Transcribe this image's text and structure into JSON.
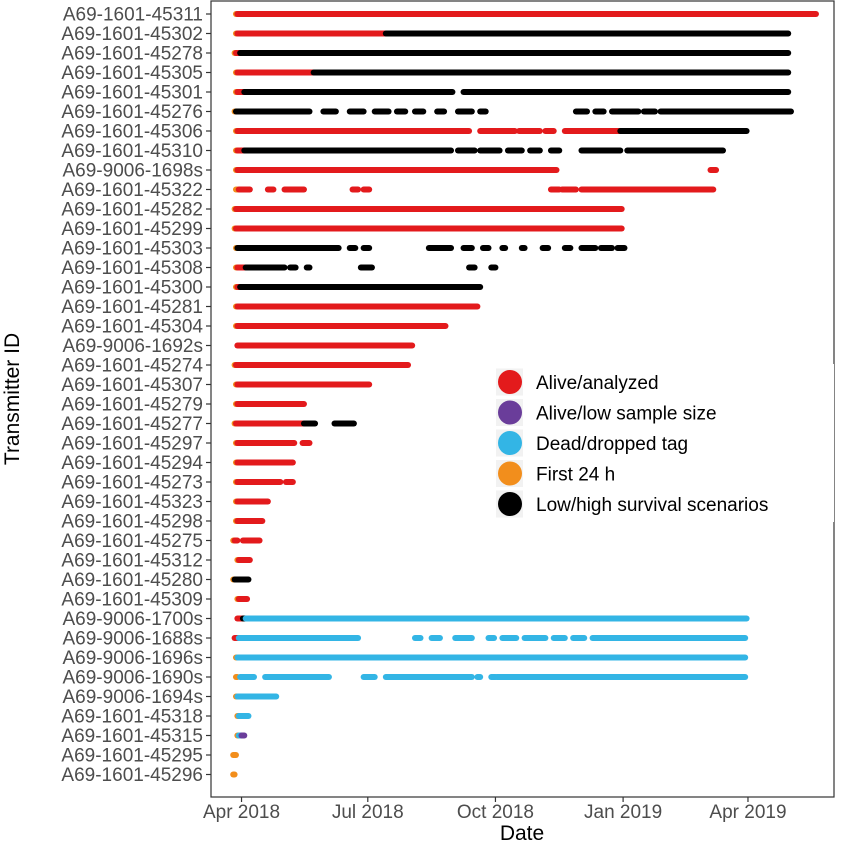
{
  "chart_data": {
    "type": "scatter",
    "xlabel": "Date",
    "ylabel": "Transmitter ID",
    "x_ticks": [
      {
        "date": "2018-04-01",
        "label": "Apr 2018"
      },
      {
        "date": "2018-07-01",
        "label": "Jul 2018"
      },
      {
        "date": "2018-10-01",
        "label": "Oct 2018"
      },
      {
        "date": "2019-01-01",
        "label": "Jan 2019"
      },
      {
        "date": "2019-04-01",
        "label": "Apr 2019"
      }
    ],
    "xlim": [
      "2018-03-10",
      "2019-06-02"
    ],
    "grid": false,
    "legend_position": "center-right",
    "legend": [
      {
        "key": "alive",
        "label": "Alive/analyzed",
        "color": "#e31a1c"
      },
      {
        "key": "low",
        "label": "Alive/low sample size",
        "color": "#6a3d9a"
      },
      {
        "key": "dead",
        "label": "Dead/dropped tag",
        "color": "#33b5e5"
      },
      {
        "key": "first",
        "label": "First 24 h",
        "color": "#f28e1c"
      },
      {
        "key": "scen",
        "label": "Low/high survival scenarios",
        "color": "#000000"
      }
    ],
    "transmitters": [
      {
        "id": "A69-1601-45311",
        "segments": [
          [
            "first",
            "2018-03-28",
            "2018-03-29"
          ],
          [
            "alive",
            "2018-03-29",
            "2019-05-20"
          ]
        ]
      },
      {
        "id": "A69-1601-45302",
        "segments": [
          [
            "first",
            "2018-03-28",
            "2018-03-29"
          ],
          [
            "alive",
            "2018-03-29",
            "2018-07-14"
          ],
          [
            "scen",
            "2018-07-14",
            "2019-04-30"
          ]
        ]
      },
      {
        "id": "A69-1601-45278",
        "segments": [
          [
            "first",
            "2018-03-27",
            "2018-03-28"
          ],
          [
            "alive",
            "2018-03-28",
            "2018-03-31"
          ],
          [
            "scen",
            "2018-03-31",
            "2019-04-30"
          ]
        ]
      },
      {
        "id": "A69-1601-45305",
        "segments": [
          [
            "first",
            "2018-03-28",
            "2018-03-29"
          ],
          [
            "alive",
            "2018-03-29",
            "2018-05-23"
          ],
          [
            "scen",
            "2018-05-23",
            "2019-04-30"
          ]
        ]
      },
      {
        "id": "A69-1601-45301",
        "segments": [
          [
            "first",
            "2018-03-28",
            "2018-03-29"
          ],
          [
            "alive",
            "2018-03-29",
            "2018-04-03"
          ],
          [
            "scen",
            "2018-04-03",
            "2018-08-31"
          ],
          [
            "scen",
            "2018-09-08",
            "2019-04-30"
          ]
        ]
      },
      {
        "id": "A69-1601-45276",
        "segments": [
          [
            "first",
            "2018-03-27",
            "2018-03-28"
          ],
          [
            "scen",
            "2018-03-28",
            "2018-05-20"
          ],
          [
            "scen",
            "2018-05-30",
            "2018-06-08"
          ],
          [
            "scen",
            "2018-06-18",
            "2018-06-28"
          ],
          [
            "scen",
            "2018-07-06",
            "2018-07-16"
          ],
          [
            "scen",
            "2018-07-22",
            "2018-07-28"
          ],
          [
            "scen",
            "2018-08-04",
            "2018-08-10"
          ],
          [
            "scen",
            "2018-08-20",
            "2018-08-25"
          ],
          [
            "scen",
            "2018-09-04",
            "2018-09-14"
          ],
          [
            "scen",
            "2018-09-20",
            "2018-09-24"
          ],
          [
            "scen",
            "2018-11-28",
            "2018-12-06"
          ],
          [
            "scen",
            "2018-12-12",
            "2018-12-18"
          ],
          [
            "scen",
            "2018-12-24",
            "2019-01-12"
          ],
          [
            "scen",
            "2019-01-16",
            "2019-01-24"
          ],
          [
            "scen",
            "2019-01-28",
            "2019-05-02"
          ]
        ]
      },
      {
        "id": "A69-1601-45306",
        "segments": [
          [
            "first",
            "2018-03-28",
            "2018-03-29"
          ],
          [
            "alive",
            "2018-03-29",
            "2018-09-12"
          ],
          [
            "alive",
            "2018-09-20",
            "2018-10-15"
          ],
          [
            "alive",
            "2018-10-18",
            "2018-11-02"
          ],
          [
            "alive",
            "2018-11-06",
            "2018-11-12"
          ],
          [
            "alive",
            "2018-11-20",
            "2018-12-30"
          ],
          [
            "scen",
            "2018-12-30",
            "2019-03-31"
          ]
        ]
      },
      {
        "id": "A69-1601-45310",
        "segments": [
          [
            "first",
            "2018-03-28",
            "2018-03-29"
          ],
          [
            "alive",
            "2018-03-29",
            "2018-04-03"
          ],
          [
            "scen",
            "2018-04-03",
            "2018-08-30"
          ],
          [
            "scen",
            "2018-09-04",
            "2018-09-16"
          ],
          [
            "scen",
            "2018-09-20",
            "2018-10-04"
          ],
          [
            "scen",
            "2018-10-10",
            "2018-10-20"
          ],
          [
            "scen",
            "2018-10-26",
            "2018-11-02"
          ],
          [
            "scen",
            "2018-11-10",
            "2018-11-16"
          ],
          [
            "scen",
            "2018-12-02",
            "2018-12-30"
          ],
          [
            "scen",
            "2019-01-04",
            "2019-03-14"
          ]
        ]
      },
      {
        "id": "A69-9006-1698s",
        "segments": [
          [
            "first",
            "2018-03-28",
            "2018-03-29"
          ],
          [
            "alive",
            "2018-03-29",
            "2018-11-14"
          ],
          [
            "alive",
            "2019-03-05",
            "2019-03-09"
          ]
        ]
      },
      {
        "id": "A69-1601-45322",
        "segments": [
          [
            "first",
            "2018-03-28",
            "2018-03-29"
          ],
          [
            "alive",
            "2018-03-30",
            "2018-04-07"
          ],
          [
            "alive",
            "2018-04-20",
            "2018-04-24"
          ],
          [
            "alive",
            "2018-05-02",
            "2018-05-16"
          ],
          [
            "alive",
            "2018-06-20",
            "2018-06-24"
          ],
          [
            "alive",
            "2018-06-28",
            "2018-07-02"
          ],
          [
            "alive",
            "2018-11-10",
            "2018-11-16"
          ],
          [
            "alive",
            "2018-11-18",
            "2018-11-28"
          ],
          [
            "alive",
            "2018-12-02",
            "2019-03-07"
          ]
        ]
      },
      {
        "id": "A69-1601-45282",
        "segments": [
          [
            "first",
            "2018-03-27",
            "2018-03-28"
          ],
          [
            "alive",
            "2018-03-28",
            "2018-12-31"
          ]
        ]
      },
      {
        "id": "A69-1601-45299",
        "segments": [
          [
            "first",
            "2018-03-27",
            "2018-03-28"
          ],
          [
            "alive",
            "2018-03-28",
            "2018-12-31"
          ]
        ]
      },
      {
        "id": "A69-1601-45303",
        "segments": [
          [
            "first",
            "2018-03-28",
            "2018-03-29"
          ],
          [
            "scen",
            "2018-03-29",
            "2018-06-10"
          ],
          [
            "scen",
            "2018-06-18",
            "2018-06-22"
          ],
          [
            "scen",
            "2018-06-28",
            "2018-07-02"
          ],
          [
            "scen",
            "2018-08-14",
            "2018-08-30"
          ],
          [
            "scen",
            "2018-09-08",
            "2018-09-14"
          ],
          [
            "scen",
            "2018-09-22",
            "2018-09-26"
          ],
          [
            "scen",
            "2018-10-06",
            "2018-10-08"
          ],
          [
            "scen",
            "2018-10-20",
            "2018-10-22"
          ],
          [
            "scen",
            "2018-11-04",
            "2018-11-08"
          ],
          [
            "scen",
            "2018-11-20",
            "2018-11-24"
          ],
          [
            "scen",
            "2018-12-02",
            "2018-12-12"
          ],
          [
            "scen",
            "2018-12-16",
            "2018-12-24"
          ],
          [
            "scen",
            "2018-12-28",
            "2019-01-02"
          ]
        ]
      },
      {
        "id": "A69-1601-45308",
        "segments": [
          [
            "first",
            "2018-03-28",
            "2018-03-29"
          ],
          [
            "alive",
            "2018-03-29",
            "2018-04-04"
          ],
          [
            "scen",
            "2018-04-04",
            "2018-05-02"
          ],
          [
            "scen",
            "2018-05-06",
            "2018-05-10"
          ],
          [
            "scen",
            "2018-05-18",
            "2018-05-20"
          ],
          [
            "scen",
            "2018-06-26",
            "2018-07-04"
          ],
          [
            "scen",
            "2018-09-12",
            "2018-09-16"
          ],
          [
            "scen",
            "2018-09-28",
            "2018-10-01"
          ]
        ]
      },
      {
        "id": "A69-1601-45300",
        "segments": [
          [
            "first",
            "2018-03-28",
            "2018-03-29"
          ],
          [
            "alive",
            "2018-03-29",
            "2018-03-31"
          ],
          [
            "scen",
            "2018-03-31",
            "2018-09-20"
          ]
        ]
      },
      {
        "id": "A69-1601-45281",
        "segments": [
          [
            "first",
            "2018-03-28",
            "2018-03-29"
          ],
          [
            "alive",
            "2018-03-29",
            "2018-09-18"
          ]
        ]
      },
      {
        "id": "A69-1601-45304",
        "segments": [
          [
            "first",
            "2018-03-28",
            "2018-03-29"
          ],
          [
            "alive",
            "2018-03-29",
            "2018-08-26"
          ]
        ]
      },
      {
        "id": "A69-9006-1692s",
        "segments": [
          [
            "alive",
            "2018-03-29",
            "2018-08-02"
          ]
        ]
      },
      {
        "id": "A69-1601-45274",
        "segments": [
          [
            "first",
            "2018-03-27",
            "2018-03-28"
          ],
          [
            "alive",
            "2018-03-28",
            "2018-07-30"
          ]
        ]
      },
      {
        "id": "A69-1601-45307",
        "segments": [
          [
            "first",
            "2018-03-28",
            "2018-03-29"
          ],
          [
            "alive",
            "2018-03-29",
            "2018-07-02"
          ]
        ]
      },
      {
        "id": "A69-1601-45279",
        "segments": [
          [
            "first",
            "2018-03-28",
            "2018-03-29"
          ],
          [
            "alive",
            "2018-03-29",
            "2018-05-16"
          ]
        ]
      },
      {
        "id": "A69-1601-45277",
        "segments": [
          [
            "first",
            "2018-03-27",
            "2018-03-28"
          ],
          [
            "alive",
            "2018-03-28",
            "2018-05-16"
          ],
          [
            "scen",
            "2018-05-16",
            "2018-05-24"
          ],
          [
            "scen",
            "2018-06-07",
            "2018-06-21"
          ]
        ]
      },
      {
        "id": "A69-1601-45297",
        "segments": [
          [
            "first",
            "2018-03-28",
            "2018-03-29"
          ],
          [
            "alive",
            "2018-03-29",
            "2018-05-09"
          ],
          [
            "alive",
            "2018-05-15",
            "2018-05-20"
          ]
        ]
      },
      {
        "id": "A69-1601-45294",
        "segments": [
          [
            "first",
            "2018-03-28",
            "2018-03-29"
          ],
          [
            "alive",
            "2018-03-29",
            "2018-05-08"
          ]
        ]
      },
      {
        "id": "A69-1601-45273",
        "segments": [
          [
            "first",
            "2018-03-28",
            "2018-03-29"
          ],
          [
            "alive",
            "2018-03-29",
            "2018-04-29"
          ],
          [
            "alive",
            "2018-05-03",
            "2018-05-08"
          ]
        ]
      },
      {
        "id": "A69-1601-45323",
        "segments": [
          [
            "first",
            "2018-03-28",
            "2018-03-29"
          ],
          [
            "alive",
            "2018-03-29",
            "2018-04-20"
          ]
        ]
      },
      {
        "id": "A69-1601-45298",
        "segments": [
          [
            "first",
            "2018-03-28",
            "2018-03-29"
          ],
          [
            "alive",
            "2018-03-29",
            "2018-04-16"
          ]
        ]
      },
      {
        "id": "A69-1601-45275",
        "segments": [
          [
            "first",
            "2018-03-26",
            "2018-03-27"
          ],
          [
            "alive",
            "2018-03-27",
            "2018-03-29"
          ],
          [
            "alive",
            "2018-04-02",
            "2018-04-14"
          ]
        ]
      },
      {
        "id": "A69-1601-45312",
        "segments": [
          [
            "first",
            "2018-03-29",
            "2018-03-30"
          ],
          [
            "alive",
            "2018-03-30",
            "2018-04-07"
          ]
        ]
      },
      {
        "id": "A69-1601-45280",
        "segments": [
          [
            "first",
            "2018-03-26",
            "2018-03-27"
          ],
          [
            "scen",
            "2018-03-27",
            "2018-04-06"
          ]
        ]
      },
      {
        "id": "A69-1601-45309",
        "segments": [
          [
            "first",
            "2018-03-29",
            "2018-03-30"
          ],
          [
            "alive",
            "2018-03-30",
            "2018-04-05"
          ]
        ]
      },
      {
        "id": "A69-9006-1700s",
        "segments": [
          [
            "alive",
            "2018-03-29",
            "2018-04-02"
          ],
          [
            "scen",
            "2018-04-02",
            "2018-04-04"
          ],
          [
            "dead",
            "2018-04-04",
            "2019-03-31"
          ]
        ]
      },
      {
        "id": "A69-9006-1688s",
        "segments": [
          [
            "alive",
            "2018-03-27",
            "2018-03-30"
          ],
          [
            "dead",
            "2018-03-30",
            "2018-06-24"
          ],
          [
            "dead",
            "2018-08-04",
            "2018-08-08"
          ],
          [
            "dead",
            "2018-08-16",
            "2018-08-22"
          ],
          [
            "dead",
            "2018-09-02",
            "2018-09-14"
          ],
          [
            "dead",
            "2018-09-26",
            "2018-09-30"
          ],
          [
            "dead",
            "2018-10-06",
            "2018-10-16"
          ],
          [
            "dead",
            "2018-10-22",
            "2018-11-06"
          ],
          [
            "dead",
            "2018-11-12",
            "2018-11-20"
          ],
          [
            "dead",
            "2018-11-26",
            "2018-12-04"
          ],
          [
            "dead",
            "2018-12-10",
            "2019-03-30"
          ]
        ]
      },
      {
        "id": "A69-9006-1696s",
        "segments": [
          [
            "first",
            "2018-03-28",
            "2018-03-29"
          ],
          [
            "dead",
            "2018-03-29",
            "2019-03-30"
          ]
        ]
      },
      {
        "id": "A69-9006-1690s",
        "segments": [
          [
            "first",
            "2018-03-28",
            "2018-03-29"
          ],
          [
            "dead",
            "2018-03-31",
            "2018-04-10"
          ],
          [
            "dead",
            "2018-04-18",
            "2018-06-03"
          ],
          [
            "dead",
            "2018-06-28",
            "2018-07-06"
          ],
          [
            "dead",
            "2018-07-14",
            "2018-09-14"
          ],
          [
            "dead",
            "2018-09-18",
            "2018-09-20"
          ],
          [
            "dead",
            "2018-09-28",
            "2018-10-01"
          ],
          [
            "dead",
            "2018-10-02",
            "2019-03-30"
          ]
        ]
      },
      {
        "id": "A69-9006-1694s",
        "segments": [
          [
            "first",
            "2018-03-28",
            "2018-03-29"
          ],
          [
            "dead",
            "2018-03-29",
            "2018-04-26"
          ]
        ]
      },
      {
        "id": "A69-1601-45318",
        "segments": [
          [
            "first",
            "2018-03-29",
            "2018-03-30"
          ],
          [
            "dead",
            "2018-03-30",
            "2018-04-06"
          ]
        ]
      },
      {
        "id": "A69-1601-45315",
        "segments": [
          [
            "first",
            "2018-03-29",
            "2018-03-30"
          ],
          [
            "dead",
            "2018-03-30",
            "2018-04-01"
          ],
          [
            "low",
            "2018-04-01",
            "2018-04-03"
          ]
        ]
      },
      {
        "id": "A69-1601-45295",
        "segments": [
          [
            "first",
            "2018-03-26",
            "2018-03-28"
          ]
        ]
      },
      {
        "id": "A69-1601-45296",
        "segments": [
          [
            "first",
            "2018-03-26",
            "2018-03-27"
          ]
        ]
      }
    ]
  }
}
